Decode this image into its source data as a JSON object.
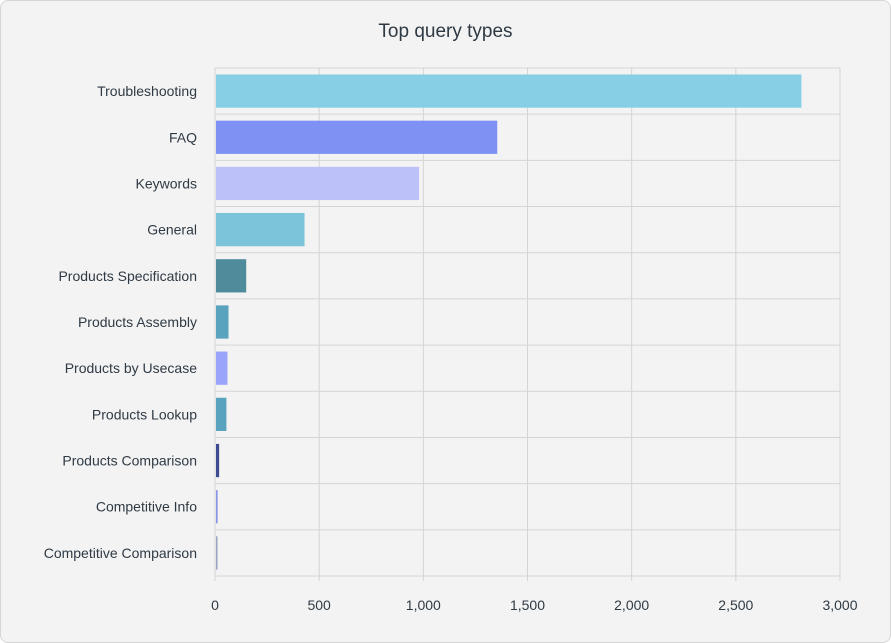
{
  "chart_data": {
    "type": "bar",
    "orientation": "horizontal",
    "title": "Top query types",
    "categories": [
      "Troubleshooting",
      "FAQ",
      "Keywords",
      "General",
      "Products Specification",
      "Products Assembly",
      "Products by Usecase",
      "Products Lookup",
      "Products Comparison",
      "Competitive Info",
      "Competitive Comparison"
    ],
    "values": [
      2810,
      1350,
      975,
      425,
      145,
      60,
      55,
      50,
      15,
      8,
      3
    ],
    "colors": [
      "#86cfe5",
      "#7f91f2",
      "#bcc1fa",
      "#7cc4d9",
      "#4e8b9b",
      "#5aa3bf",
      "#9aa4fb",
      "#5aa3bf",
      "#3e4a91",
      "#8b95e8",
      "#9aa4c0"
    ],
    "xlim": [
      0,
      3000
    ],
    "xticks": [
      "0",
      "500",
      "1,000",
      "1,500",
      "2,000",
      "2,500",
      "3,000"
    ],
    "xtick_values": [
      0,
      500,
      1000,
      1500,
      2000,
      2500,
      3000
    ],
    "grid": true
  }
}
